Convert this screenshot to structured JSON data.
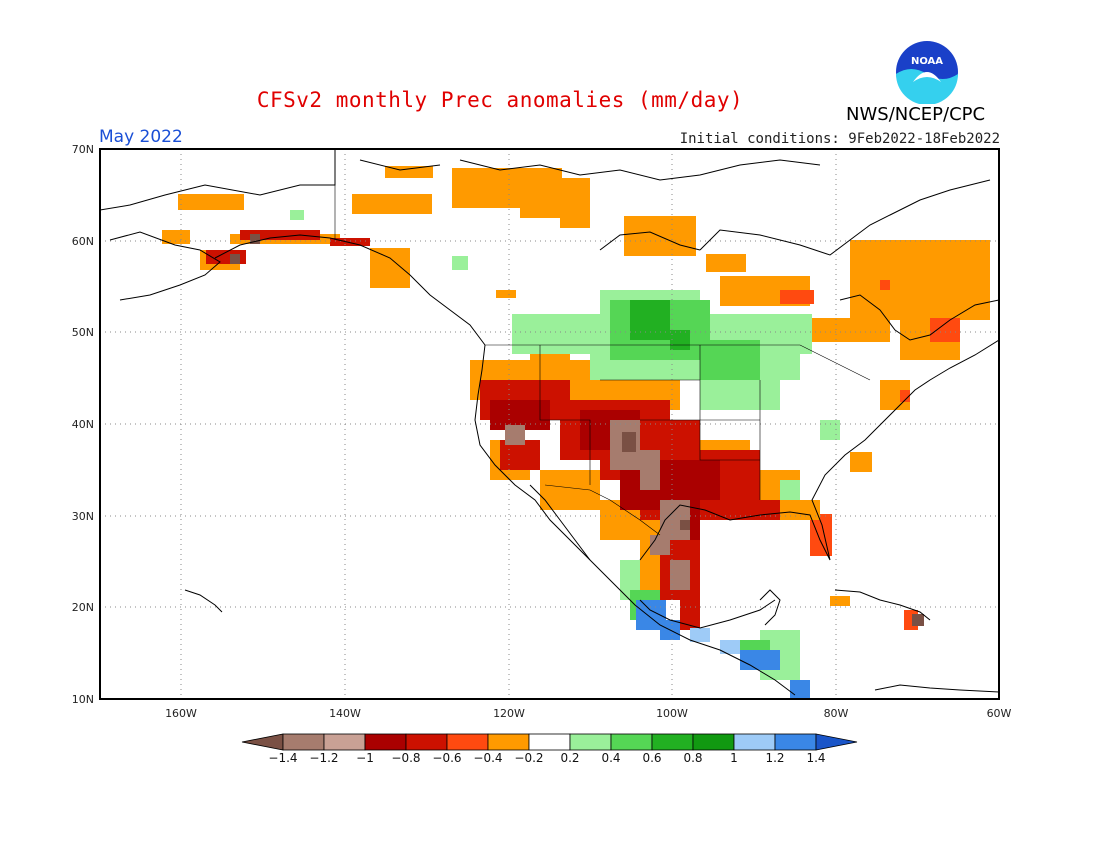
{
  "header": {
    "title": "CFSv2 monthly Prec anomalies (mm/day)",
    "month": "May 2022",
    "initial_conditions": "Initial conditions: 9Feb2022-18Feb2022",
    "agency": "NWS/NCEP/CPC",
    "logo_text": "NOAA"
  },
  "axes": {
    "lat_labels": [
      "70N",
      "60N",
      "50N",
      "40N",
      "30N",
      "20N",
      "10N"
    ],
    "lon_labels": [
      "160W",
      "140W",
      "120W",
      "100W",
      "80W",
      "60W"
    ]
  },
  "colorbar": {
    "labels": [
      "-1.4",
      "-1.2",
      "-1",
      "-0.8",
      "-0.6",
      "-0.4",
      "-0.2",
      "0.2",
      "0.4",
      "0.6",
      "0.8",
      "1",
      "1.2",
      "1.4"
    ],
    "colors": [
      "#7a5044",
      "#a67c6e",
      "#c9a195",
      "#aa0000",
      "#cc1100",
      "#ff4a10",
      "#ff9a00",
      "#ffffff",
      "#9af09a",
      "#55d655",
      "#22b022",
      "#119911",
      "#9ecbf7",
      "#3a87e6",
      "#1a55c8"
    ]
  },
  "colors": {
    "title": "#e00000",
    "month": "#1a4fd6",
    "border": "#000000",
    "grid": "#888888"
  }
}
